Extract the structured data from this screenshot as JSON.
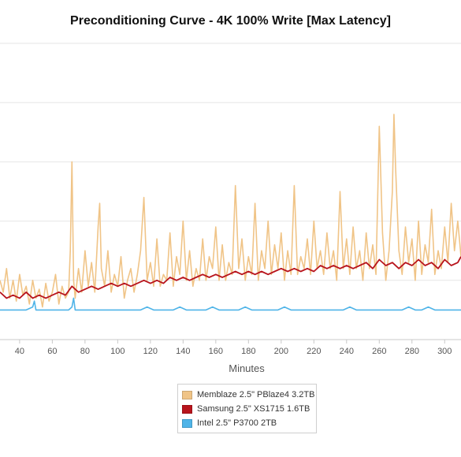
{
  "chart_data": {
    "type": "line",
    "title": "Preconditioning Curve - 4K 100% Write [Max Latency]",
    "xlabel": "Minutes",
    "ylabel": "",
    "xlim": [
      28,
      310
    ],
    "ylim": [
      0,
      100
    ],
    "x_ticks": [
      40,
      60,
      80,
      100,
      120,
      140,
      160,
      180,
      200,
      220,
      240,
      260,
      280,
      300
    ],
    "y_gridlines": [
      20,
      40,
      60,
      80,
      100
    ],
    "grid": true,
    "legend_position": "bottom-center",
    "series": [
      {
        "name": "Memblaze 2.5\" PBlaze4 3.2TB",
        "color": "#f0c487",
        "values": [
          [
            28,
            20
          ],
          [
            30,
            16
          ],
          [
            32,
            24
          ],
          [
            34,
            14
          ],
          [
            36,
            20
          ],
          [
            38,
            13
          ],
          [
            40,
            22
          ],
          [
            42,
            15
          ],
          [
            44,
            18
          ],
          [
            46,
            12
          ],
          [
            48,
            20
          ],
          [
            50,
            14
          ],
          [
            52,
            17
          ],
          [
            54,
            11
          ],
          [
            56,
            19
          ],
          [
            58,
            13
          ],
          [
            60,
            16
          ],
          [
            62,
            22
          ],
          [
            64,
            12
          ],
          [
            66,
            18
          ],
          [
            68,
            14
          ],
          [
            70,
            16
          ],
          [
            71,
            30
          ],
          [
            72,
            60
          ],
          [
            73,
            20
          ],
          [
            74,
            14
          ],
          [
            76,
            24
          ],
          [
            78,
            16
          ],
          [
            80,
            30
          ],
          [
            82,
            18
          ],
          [
            84,
            26
          ],
          [
            86,
            16
          ],
          [
            88,
            38
          ],
          [
            89,
            46
          ],
          [
            90,
            24
          ],
          [
            92,
            18
          ],
          [
            94,
            30
          ],
          [
            96,
            16
          ],
          [
            98,
            22
          ],
          [
            100,
            18
          ],
          [
            102,
            28
          ],
          [
            104,
            14
          ],
          [
            106,
            20
          ],
          [
            108,
            24
          ],
          [
            110,
            16
          ],
          [
            112,
            22
          ],
          [
            114,
            30
          ],
          [
            116,
            48
          ],
          [
            118,
            20
          ],
          [
            120,
            26
          ],
          [
            122,
            18
          ],
          [
            124,
            34
          ],
          [
            126,
            18
          ],
          [
            128,
            22
          ],
          [
            130,
            20
          ],
          [
            132,
            36
          ],
          [
            134,
            18
          ],
          [
            136,
            28
          ],
          [
            138,
            22
          ],
          [
            140,
            40
          ],
          [
            142,
            20
          ],
          [
            144,
            30
          ],
          [
            146,
            18
          ],
          [
            148,
            24
          ],
          [
            150,
            20
          ],
          [
            152,
            34
          ],
          [
            154,
            20
          ],
          [
            156,
            28
          ],
          [
            158,
            24
          ],
          [
            160,
            38
          ],
          [
            162,
            20
          ],
          [
            164,
            32
          ],
          [
            166,
            20
          ],
          [
            168,
            26
          ],
          [
            170,
            22
          ],
          [
            172,
            52
          ],
          [
            174,
            24
          ],
          [
            176,
            34
          ],
          [
            178,
            20
          ],
          [
            180,
            28
          ],
          [
            182,
            22
          ],
          [
            184,
            46
          ],
          [
            186,
            20
          ],
          [
            188,
            30
          ],
          [
            190,
            24
          ],
          [
            192,
            40
          ],
          [
            194,
            22
          ],
          [
            196,
            32
          ],
          [
            198,
            24
          ],
          [
            200,
            36
          ],
          [
            202,
            20
          ],
          [
            204,
            30
          ],
          [
            206,
            22
          ],
          [
            208,
            52
          ],
          [
            210,
            22
          ],
          [
            212,
            28
          ],
          [
            214,
            24
          ],
          [
            216,
            34
          ],
          [
            218,
            22
          ],
          [
            220,
            40
          ],
          [
            222,
            24
          ],
          [
            224,
            30
          ],
          [
            226,
            22
          ],
          [
            228,
            36
          ],
          [
            230,
            24
          ],
          [
            232,
            30
          ],
          [
            234,
            20
          ],
          [
            236,
            50
          ],
          [
            238,
            24
          ],
          [
            240,
            34
          ],
          [
            242,
            22
          ],
          [
            244,
            38
          ],
          [
            246,
            24
          ],
          [
            248,
            30
          ],
          [
            250,
            20
          ],
          [
            252,
            36
          ],
          [
            254,
            24
          ],
          [
            256,
            32
          ],
          [
            258,
            22
          ],
          [
            260,
            72
          ],
          [
            262,
            36
          ],
          [
            264,
            20
          ],
          [
            266,
            30
          ],
          [
            268,
            50
          ],
          [
            269,
            76
          ],
          [
            270,
            58
          ],
          [
            272,
            30
          ],
          [
            274,
            22
          ],
          [
            276,
            38
          ],
          [
            278,
            26
          ],
          [
            280,
            34
          ],
          [
            282,
            20
          ],
          [
            284,
            40
          ],
          [
            286,
            22
          ],
          [
            288,
            32
          ],
          [
            290,
            26
          ],
          [
            292,
            44
          ],
          [
            294,
            22
          ],
          [
            296,
            30
          ],
          [
            298,
            24
          ],
          [
            300,
            38
          ],
          [
            302,
            26
          ],
          [
            304,
            46
          ],
          [
            306,
            30
          ],
          [
            308,
            40
          ],
          [
            310,
            28
          ]
        ]
      },
      {
        "name": "Samsung 2.5\" XS1715 1.6TB",
        "color": "#b8141c",
        "values": [
          [
            28,
            16
          ],
          [
            32,
            14
          ],
          [
            36,
            15
          ],
          [
            40,
            14
          ],
          [
            44,
            16
          ],
          [
            48,
            14
          ],
          [
            52,
            15
          ],
          [
            56,
            14
          ],
          [
            60,
            15
          ],
          [
            64,
            16
          ],
          [
            68,
            15
          ],
          [
            72,
            18
          ],
          [
            76,
            16
          ],
          [
            80,
            17
          ],
          [
            84,
            18
          ],
          [
            88,
            17
          ],
          [
            92,
            18
          ],
          [
            96,
            19
          ],
          [
            100,
            18
          ],
          [
            104,
            19
          ],
          [
            108,
            18
          ],
          [
            112,
            19
          ],
          [
            116,
            20
          ],
          [
            120,
            19
          ],
          [
            124,
            20
          ],
          [
            128,
            19
          ],
          [
            132,
            21
          ],
          [
            136,
            20
          ],
          [
            140,
            21
          ],
          [
            144,
            20
          ],
          [
            148,
            21
          ],
          [
            152,
            22
          ],
          [
            156,
            21
          ],
          [
            160,
            22
          ],
          [
            164,
            21
          ],
          [
            168,
            22
          ],
          [
            172,
            23
          ],
          [
            176,
            22
          ],
          [
            180,
            23
          ],
          [
            184,
            22
          ],
          [
            188,
            23
          ],
          [
            192,
            22
          ],
          [
            196,
            23
          ],
          [
            200,
            24
          ],
          [
            204,
            23
          ],
          [
            208,
            24
          ],
          [
            212,
            23
          ],
          [
            216,
            24
          ],
          [
            220,
            23
          ],
          [
            224,
            25
          ],
          [
            228,
            24
          ],
          [
            232,
            25
          ],
          [
            236,
            24
          ],
          [
            240,
            25
          ],
          [
            244,
            24
          ],
          [
            248,
            25
          ],
          [
            252,
            26
          ],
          [
            256,
            24
          ],
          [
            260,
            27
          ],
          [
            264,
            25
          ],
          [
            268,
            26
          ],
          [
            272,
            24
          ],
          [
            276,
            26
          ],
          [
            280,
            25
          ],
          [
            284,
            27
          ],
          [
            288,
            25
          ],
          [
            292,
            26
          ],
          [
            296,
            24
          ],
          [
            300,
            27
          ],
          [
            304,
            25
          ],
          [
            308,
            26
          ],
          [
            310,
            28
          ]
        ]
      },
      {
        "name": "Intel 2.5\" P3700 2TB",
        "color": "#4fb4e8",
        "values": [
          [
            28,
            10
          ],
          [
            32,
            10
          ],
          [
            36,
            10
          ],
          [
            40,
            10
          ],
          [
            44,
            10
          ],
          [
            48,
            11
          ],
          [
            49,
            13
          ],
          [
            50,
            10
          ],
          [
            54,
            10
          ],
          [
            58,
            10
          ],
          [
            62,
            10
          ],
          [
            66,
            10
          ],
          [
            70,
            10
          ],
          [
            72,
            11
          ],
          [
            73,
            14
          ],
          [
            74,
            10
          ],
          [
            78,
            10
          ],
          [
            82,
            10
          ],
          [
            86,
            10
          ],
          [
            90,
            10
          ],
          [
            94,
            10
          ],
          [
            98,
            10
          ],
          [
            102,
            10
          ],
          [
            106,
            10
          ],
          [
            110,
            10
          ],
          [
            114,
            10
          ],
          [
            118,
            11
          ],
          [
            122,
            10
          ],
          [
            126,
            10
          ],
          [
            130,
            10
          ],
          [
            134,
            10
          ],
          [
            138,
            11
          ],
          [
            142,
            10
          ],
          [
            146,
            10
          ],
          [
            150,
            10
          ],
          [
            154,
            10
          ],
          [
            158,
            11
          ],
          [
            162,
            10
          ],
          [
            166,
            10
          ],
          [
            170,
            10
          ],
          [
            174,
            10
          ],
          [
            178,
            11
          ],
          [
            182,
            10
          ],
          [
            186,
            10
          ],
          [
            190,
            10
          ],
          [
            194,
            10
          ],
          [
            198,
            10
          ],
          [
            202,
            11
          ],
          [
            206,
            10
          ],
          [
            210,
            10
          ],
          [
            214,
            10
          ],
          [
            218,
            10
          ],
          [
            222,
            10
          ],
          [
            226,
            10
          ],
          [
            230,
            10
          ],
          [
            234,
            10
          ],
          [
            238,
            10
          ],
          [
            242,
            11
          ],
          [
            246,
            10
          ],
          [
            250,
            10
          ],
          [
            254,
            10
          ],
          [
            258,
            10
          ],
          [
            262,
            10
          ],
          [
            266,
            10
          ],
          [
            270,
            10
          ],
          [
            274,
            10
          ],
          [
            278,
            11
          ],
          [
            282,
            10
          ],
          [
            286,
            10
          ],
          [
            290,
            11
          ],
          [
            294,
            10
          ],
          [
            298,
            10
          ],
          [
            302,
            10
          ],
          [
            306,
            10
          ],
          [
            310,
            10
          ]
        ]
      }
    ]
  }
}
